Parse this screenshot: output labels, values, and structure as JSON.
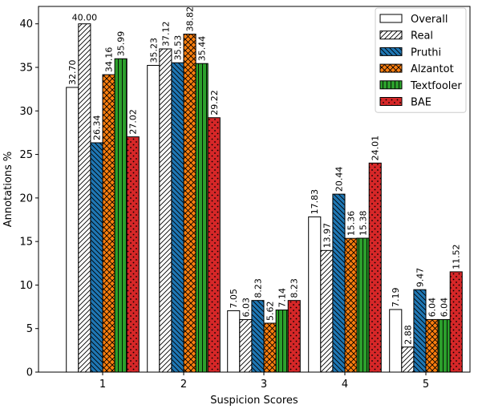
{
  "chart_data": {
    "type": "bar",
    "title": "",
    "xlabel": "Suspicion Scores",
    "ylabel": "Annotations %",
    "categories": [
      "1",
      "2",
      "3",
      "4",
      "5"
    ],
    "ylim": [
      0,
      42
    ],
    "yticks": [
      0,
      5,
      10,
      15,
      20,
      25,
      30,
      35,
      40
    ],
    "grid": false,
    "legend_position": "top-right",
    "series": [
      {
        "name": "Overall",
        "values": [
          32.7,
          35.23,
          7.05,
          17.83,
          7.19
        ],
        "labels": [
          "32.70",
          "35.23",
          "7.05",
          "17.83",
          "7.19"
        ],
        "color": "#ffffff",
        "pattern": "none"
      },
      {
        "name": "Real",
        "values": [
          40.0,
          37.12,
          6.03,
          13.97,
          2.88
        ],
        "labels": [
          "40.00",
          "37.12",
          "6.03",
          "13.97",
          "2.88"
        ],
        "color": "#ffffff",
        "pattern": "diagonal"
      },
      {
        "name": "Pruthi",
        "values": [
          26.34,
          35.53,
          8.23,
          20.44,
          9.47
        ],
        "labels": [
          "26.34",
          "35.53",
          "8.23",
          "20.44",
          "9.47"
        ],
        "color": "#1f77b4",
        "pattern": "backslash"
      },
      {
        "name": "Alzantot",
        "values": [
          34.16,
          38.82,
          5.62,
          15.36,
          6.04
        ],
        "labels": [
          "34.16",
          "38.82",
          "5.62",
          "15.36",
          "6.04"
        ],
        "color": "#ff7f0e",
        "pattern": "crosshatch"
      },
      {
        "name": "Textfooler",
        "values": [
          35.99,
          35.44,
          7.14,
          15.38,
          6.04
        ],
        "labels": [
          "35.99",
          "35.44",
          "7.14",
          "15.38",
          "6.04"
        ],
        "color": "#2ca02c",
        "pattern": "vertical"
      },
      {
        "name": "BAE",
        "values": [
          27.02,
          29.22,
          8.23,
          24.01,
          11.52
        ],
        "labels": [
          "27.02",
          "29.22",
          "8.23",
          "24.01",
          "11.52"
        ],
        "color": "#d62728",
        "pattern": "dots"
      }
    ]
  }
}
